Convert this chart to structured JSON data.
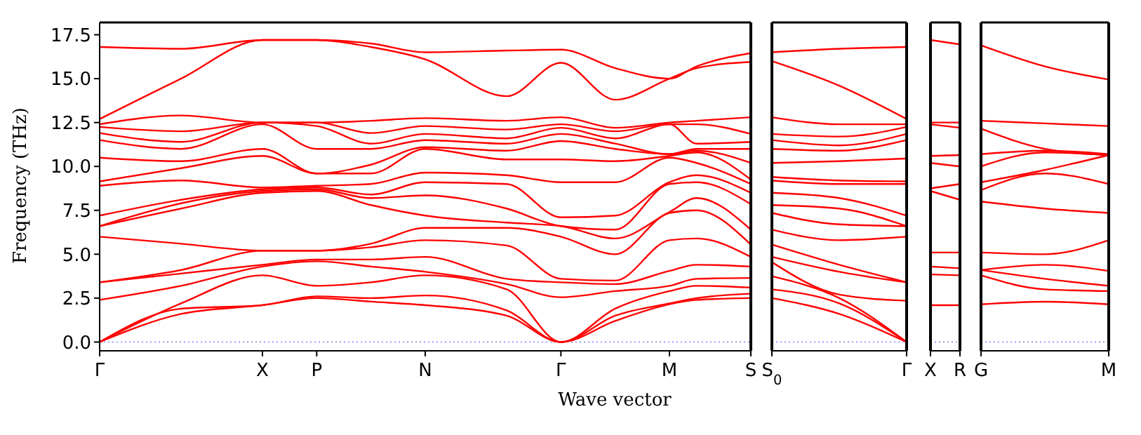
{
  "chart_data": [
    {
      "type": "line",
      "ylabel": "Frequency (THz)",
      "xlabel": "Wave vector",
      "line_style": "solid",
      "ylim": [
        -0.5,
        18.2
      ],
      "yticks": [
        {
          "value": 0,
          "label": "0.0"
        },
        2.5,
        {
          "value": 5,
          "label": "5.0"
        },
        7.5,
        {
          "value": 10,
          "label": "10.0"
        },
        12.5,
        {
          "value": 15,
          "label": "15.0"
        },
        17.5
      ],
      "ref_lines": [
        {
          "axis": "y",
          "value": 0,
          "color": "#8080ff",
          "line_style": "dotted"
        }
      ],
      "categories": [
        "Γ",
        null,
        null,
        null,
        null,
        null,
        "X",
        null,
        "P",
        null,
        null,
        null,
        "N",
        null,
        null,
        null,
        null,
        "Γ",
        null,
        null,
        null,
        "M",
        null,
        null,
        "S"
      ],
      "series": [
        {
          "color": "#ff0000",
          "values": [
            0,
            null,
            null,
            1.6,
            null,
            null,
            2.1,
            null,
            2.5,
            null,
            2.3,
            null,
            2.1,
            null,
            null,
            1.5,
            null,
            0,
            null,
            1.2,
            null,
            2.15,
            2.4,
            null,
            2.5
          ]
        },
        {
          "color": "#ff0000",
          "values": [
            0,
            null,
            null,
            1.9,
            null,
            null,
            2.1,
            null,
            2.6,
            null,
            2.5,
            null,
            2.65,
            null,
            null,
            1.8,
            null,
            0,
            null,
            1.5,
            null,
            2.2,
            2.5,
            null,
            2.75
          ]
        },
        {
          "color": "#ff0000",
          "values": [
            0,
            null,
            null,
            2.2,
            null,
            null,
            3.8,
            null,
            3.2,
            null,
            3.4,
            null,
            3.8,
            null,
            null,
            3.0,
            null,
            0,
            null,
            1.9,
            null,
            2.9,
            3.2,
            null,
            3.1
          ]
        },
        {
          "color": "#ff0000",
          "values": [
            2.4,
            null,
            null,
            3.2,
            null,
            null,
            4.3,
            null,
            4.6,
            null,
            4.3,
            null,
            4.0,
            null,
            null,
            3.3,
            null,
            2.55,
            null,
            2.9,
            null,
            3.2,
            3.6,
            null,
            3.65
          ]
        },
        {
          "color": "#ff0000",
          "values": [
            3.4,
            null,
            null,
            3.9,
            null,
            null,
            4.4,
            null,
            4.7,
            null,
            4.7,
            null,
            4.85,
            null,
            null,
            3.6,
            null,
            3.4,
            null,
            3.3,
            null,
            4.05,
            4.4,
            null,
            4.3
          ]
        },
        {
          "color": "#ff0000",
          "values": [
            3.4,
            null,
            null,
            4.1,
            null,
            null,
            5.2,
            null,
            5.2,
            null,
            5.4,
            null,
            5.8,
            null,
            null,
            5.5,
            null,
            3.6,
            null,
            3.5,
            null,
            5.8,
            5.9,
            null,
            4.85
          ]
        },
        {
          "color": "#ff0000",
          "values": [
            6.0,
            null,
            null,
            5.6,
            null,
            null,
            5.2,
            null,
            5.2,
            null,
            5.6,
            null,
            6.5,
            null,
            null,
            6.5,
            null,
            6.0,
            null,
            5.0,
            null,
            7.35,
            7.5,
            null,
            5.55
          ]
        },
        {
          "color": "#ff0000",
          "values": [
            6.6,
            null,
            null,
            7.6,
            null,
            null,
            8.5,
            null,
            8.6,
            null,
            7.8,
            null,
            7.2,
            null,
            null,
            6.8,
            null,
            6.6,
            null,
            5.9,
            null,
            7.4,
            8.2,
            null,
            6.4
          ]
        },
        {
          "color": "#ff0000",
          "values": [
            6.6,
            null,
            null,
            7.9,
            null,
            null,
            8.6,
            null,
            8.7,
            null,
            8.2,
            null,
            8.35,
            null,
            null,
            7.6,
            null,
            6.6,
            null,
            6.4,
            null,
            9.0,
            9.1,
            null,
            7.85
          ]
        },
        {
          "color": "#ff0000",
          "values": [
            7.2,
            null,
            null,
            8.1,
            null,
            null,
            8.7,
            null,
            8.8,
            null,
            8.4,
            null,
            9.1,
            null,
            null,
            9.0,
            null,
            7.1,
            null,
            7.2,
            null,
            9.1,
            9.5,
            null,
            8.5
          ]
        },
        {
          "color": "#ff0000",
          "values": [
            8.9,
            null,
            null,
            9.2,
            null,
            null,
            8.8,
            null,
            8.9,
            null,
            9.0,
            null,
            9.65,
            null,
            null,
            9.5,
            null,
            9.1,
            null,
            9.1,
            null,
            10.5,
            10.2,
            null,
            9.0
          ]
        },
        {
          "color": "#ff0000",
          "values": [
            9.15,
            null,
            null,
            9.9,
            null,
            null,
            10.6,
            null,
            9.6,
            null,
            9.6,
            null,
            11.0,
            null,
            null,
            10.4,
            null,
            10.4,
            null,
            10.3,
            null,
            10.6,
            10.8,
            null,
            9.25
          ]
        },
        {
          "color": "#ff0000",
          "values": [
            10.5,
            null,
            null,
            10.3,
            null,
            null,
            11.0,
            null,
            9.6,
            null,
            10.1,
            null,
            11.1,
            null,
            null,
            10.9,
            null,
            11.45,
            null,
            11.0,
            null,
            10.7,
            10.9,
            null,
            10.2
          ]
        },
        {
          "color": "#ff0000",
          "values": [
            11.5,
            null,
            null,
            11.0,
            null,
            null,
            12.4,
            null,
            11.0,
            null,
            11.0,
            null,
            11.5,
            null,
            null,
            11.3,
            null,
            11.85,
            null,
            11.3,
            null,
            10.7,
            11.0,
            null,
            11.0
          ]
        },
        {
          "color": "#ff0000",
          "values": [
            11.9,
            null,
            null,
            11.4,
            null,
            null,
            12.5,
            null,
            12.3,
            null,
            11.3,
            null,
            11.85,
            null,
            null,
            11.6,
            null,
            12.2,
            null,
            11.6,
            null,
            12.4,
            11.3,
            null,
            11.4
          ]
        },
        {
          "color": "#ff0000",
          "values": [
            12.25,
            null,
            null,
            12.0,
            null,
            null,
            12.5,
            null,
            12.5,
            null,
            11.9,
            null,
            12.3,
            null,
            null,
            12.1,
            null,
            12.4,
            null,
            12.0,
            null,
            12.4,
            12.4,
            null,
            11.85
          ]
        },
        {
          "color": "#ff0000",
          "values": [
            12.4,
            null,
            null,
            12.9,
            null,
            null,
            12.5,
            null,
            12.5,
            null,
            12.6,
            null,
            12.75,
            null,
            null,
            12.6,
            null,
            12.8,
            null,
            12.2,
            null,
            12.5,
            12.6,
            null,
            12.8
          ]
        },
        {
          "color": "#ff0000",
          "values": [
            12.7,
            null,
            null,
            15.0,
            null,
            null,
            17.2,
            null,
            17.2,
            null,
            16.8,
            null,
            16.1,
            null,
            null,
            14.0,
            null,
            15.9,
            null,
            13.8,
            null,
            15.0,
            15.6,
            null,
            15.95
          ]
        },
        {
          "color": "#ff0000",
          "values": [
            16.8,
            null,
            null,
            16.7,
            null,
            null,
            17.2,
            null,
            17.2,
            null,
            17.0,
            null,
            16.5,
            null,
            null,
            16.6,
            null,
            16.65,
            null,
            15.6,
            null,
            15.0,
            15.7,
            null,
            16.45
          ]
        }
      ]
    },
    {
      "type": "line",
      "tick_labels": "x",
      "line_style": "solid",
      "ylim": [
        -0.5,
        18.2
      ],
      "categories": [
        "S$_{0}$",
        null,
        "Γ"
      ],
      "ref_lines": [
        {
          "axis": "y",
          "value": 0,
          "color": "#8080ff",
          "line_style": "dotted"
        }
      ],
      "series": [
        {
          "color": "#ff0000",
          "values": [
            2.5,
            1.6,
            0
          ]
        },
        {
          "color": "#ff0000",
          "values": [
            3.0,
            2.2,
            0
          ]
        },
        {
          "color": "#ff0000",
          "values": [
            3.75,
            2.5,
            0
          ]
        },
        {
          "color": "#ff0000",
          "values": [
            4.55,
            2.7,
            2.35
          ]
        },
        {
          "color": "#ff0000",
          "values": [
            4.85,
            4.0,
            3.4
          ]
        },
        {
          "color": "#ff0000",
          "values": [
            5.55,
            4.4,
            3.4
          ]
        },
        {
          "color": "#ff0000",
          "values": [
            6.4,
            5.8,
            6.0
          ]
        },
        {
          "color": "#ff0000",
          "values": [
            7.35,
            6.7,
            6.6
          ]
        },
        {
          "color": "#ff0000",
          "values": [
            7.8,
            7.6,
            6.6
          ]
        },
        {
          "color": "#ff0000",
          "values": [
            8.5,
            8.2,
            7.2
          ]
        },
        {
          "color": "#ff0000",
          "values": [
            9.2,
            9.0,
            9.0
          ]
        },
        {
          "color": "#ff0000",
          "values": [
            9.4,
            9.2,
            9.15
          ]
        },
        {
          "color": "#ff0000",
          "values": [
            10.2,
            10.3,
            10.45
          ]
        },
        {
          "color": "#ff0000",
          "values": [
            11.0,
            10.9,
            11.5
          ]
        },
        {
          "color": "#ff0000",
          "values": [
            11.5,
            11.2,
            11.85
          ]
        },
        {
          "color": "#ff0000",
          "values": [
            11.85,
            11.7,
            12.25
          ]
        },
        {
          "color": "#ff0000",
          "values": [
            12.8,
            12.4,
            12.4
          ]
        },
        {
          "color": "#ff0000",
          "values": [
            16.0,
            14.6,
            12.7
          ]
        },
        {
          "color": "#ff0000",
          "values": [
            16.5,
            16.7,
            16.8
          ]
        }
      ]
    },
    {
      "type": "line",
      "tick_labels": "x",
      "line_style": "solid",
      "ylim": [
        -0.5,
        18.2
      ],
      "categories": [
        "X",
        "R"
      ],
      "ref_lines": [
        {
          "axis": "y",
          "value": 0,
          "color": "#8080ff",
          "line_style": "dotted"
        }
      ],
      "series": [
        {
          "color": "#ff0000",
          "values": [
            2.1,
            2.1
          ]
        },
        {
          "color": "#ff0000",
          "values": [
            3.85,
            3.8
          ]
        },
        {
          "color": "#ff0000",
          "values": [
            4.3,
            4.2
          ]
        },
        {
          "color": "#ff0000",
          "values": [
            5.1,
            5.1
          ]
        },
        {
          "color": "#ff0000",
          "values": [
            8.6,
            8.1
          ]
        },
        {
          "color": "#ff0000",
          "values": [
            8.75,
            9.0
          ]
        },
        {
          "color": "#ff0000",
          "values": [
            10.2,
            10.0
          ]
        },
        {
          "color": "#ff0000",
          "values": [
            10.6,
            10.65
          ]
        },
        {
          "color": "#ff0000",
          "values": [
            12.4,
            12.2
          ]
        },
        {
          "color": "#ff0000",
          "values": [
            12.5,
            12.5
          ]
        },
        {
          "color": "#ff0000",
          "values": [
            17.2,
            16.95
          ]
        }
      ]
    },
    {
      "type": "line",
      "tick_labels": "x",
      "line_style": "solid",
      "ylim": [
        -0.5,
        18.2
      ],
      "categories": [
        "G",
        null,
        "M"
      ],
      "ref_lines": [
        {
          "axis": "y",
          "value": 0,
          "color": "#8080ff",
          "line_style": "dotted"
        }
      ],
      "series": [
        {
          "color": "#ff0000",
          "values": [
            2.15,
            2.3,
            2.15
          ]
        },
        {
          "color": "#ff0000",
          "values": [
            3.8,
            3.0,
            2.9
          ]
        },
        {
          "color": "#ff0000",
          "values": [
            4.1,
            3.6,
            3.2
          ]
        },
        {
          "color": "#ff0000",
          "values": [
            4.1,
            4.4,
            4.05
          ]
        },
        {
          "color": "#ff0000",
          "values": [
            5.1,
            5.0,
            5.8
          ]
        },
        {
          "color": "#ff0000",
          "values": [
            8.0,
            7.6,
            7.35
          ]
        },
        {
          "color": "#ff0000",
          "values": [
            8.65,
            9.6,
            9.0
          ]
        },
        {
          "color": "#ff0000",
          "values": [
            9.1,
            9.8,
            10.65
          ]
        },
        {
          "color": "#ff0000",
          "values": [
            10.0,
            10.8,
            10.65
          ]
        },
        {
          "color": "#ff0000",
          "values": [
            10.7,
            10.9,
            10.7
          ]
        },
        {
          "color": "#ff0000",
          "values": [
            12.15,
            11.0,
            10.65
          ]
        },
        {
          "color": "#ff0000",
          "values": [
            12.6,
            12.45,
            12.3
          ]
        },
        {
          "color": "#ff0000",
          "values": [
            16.9,
            15.7,
            14.95
          ]
        }
      ]
    }
  ]
}
